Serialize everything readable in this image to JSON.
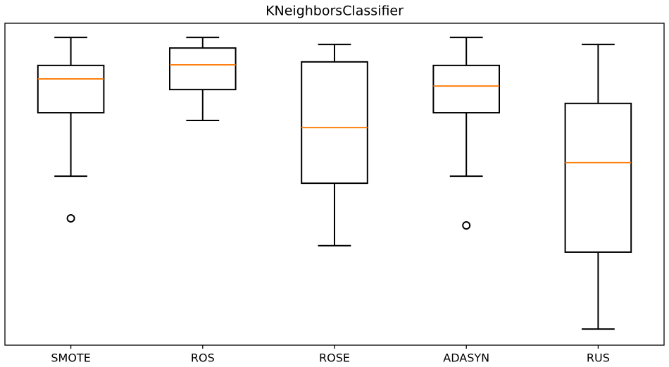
{
  "chart_data": {
    "type": "box",
    "title": "KNeighborsClassifier",
    "categories": [
      "SMOTE",
      "ROS",
      "ROSE",
      "ADASYN",
      "RUS"
    ],
    "whisker_low": [
      52.5,
      69.8,
      30.9,
      52.5,
      5.0
    ],
    "q1": [
      72.2,
      79.4,
      50.3,
      72.2,
      28.9
    ],
    "median": [
      82.7,
      87.1,
      67.6,
      80.5,
      56.7
    ],
    "q3": [
      86.9,
      92.3,
      88.0,
      86.9,
      75.1
    ],
    "whisker_high": [
      95.6,
      95.6,
      93.4,
      95.6,
      93.4
    ],
    "outliers": [
      [
        39.4
      ],
      [],
      [],
      [
        37.2
      ],
      []
    ],
    "ylim": [
      0,
      100
    ],
    "color": "#000000",
    "median_color": "#ff7f0e"
  }
}
